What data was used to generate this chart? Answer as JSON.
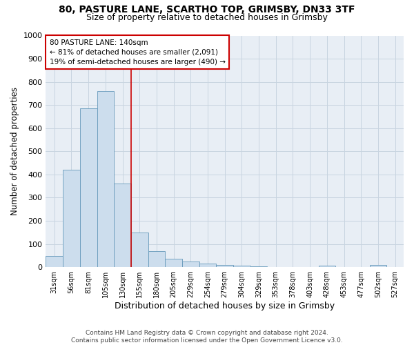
{
  "title_line1": "80, PASTURE LANE, SCARTHO TOP, GRIMSBY, DN33 3TF",
  "title_line2": "Size of property relative to detached houses in Grimsby",
  "xlabel": "Distribution of detached houses by size in Grimsby",
  "ylabel": "Number of detached properties",
  "footnote": "Contains HM Land Registry data © Crown copyright and database right 2024.\nContains public sector information licensed under the Open Government Licence v3.0.",
  "categories": [
    "31sqm",
    "56sqm",
    "81sqm",
    "105sqm",
    "130sqm",
    "155sqm",
    "180sqm",
    "205sqm",
    "229sqm",
    "254sqm",
    "279sqm",
    "304sqm",
    "329sqm",
    "353sqm",
    "378sqm",
    "403sqm",
    "428sqm",
    "453sqm",
    "477sqm",
    "502sqm",
    "527sqm"
  ],
  "values": [
    48,
    420,
    685,
    760,
    360,
    150,
    70,
    37,
    25,
    15,
    10,
    6,
    2,
    0,
    0,
    0,
    5,
    0,
    0,
    8,
    0
  ],
  "bar_color": "#ccdded",
  "bar_edge_color": "#6699bb",
  "red_line_x": 4.5,
  "annotation_line1": "80 PASTURE LANE: 140sqm",
  "annotation_line2": "← 81% of detached houses are smaller (2,091)",
  "annotation_line3": "19% of semi-detached houses are larger (490) →",
  "annotation_box_color": "#ffffff",
  "annotation_box_edge": "#cc0000",
  "red_line_color": "#cc0000",
  "ylim": [
    0,
    1000
  ],
  "yticks": [
    0,
    100,
    200,
    300,
    400,
    500,
    600,
    700,
    800,
    900,
    1000
  ],
  "grid_color": "#c8d4e0",
  "bg_color": "#e8eef5",
  "title1_fontsize": 10,
  "title2_fontsize": 9,
  "xlabel_fontsize": 9,
  "ylabel_fontsize": 8.5,
  "footnote_fontsize": 6.5
}
